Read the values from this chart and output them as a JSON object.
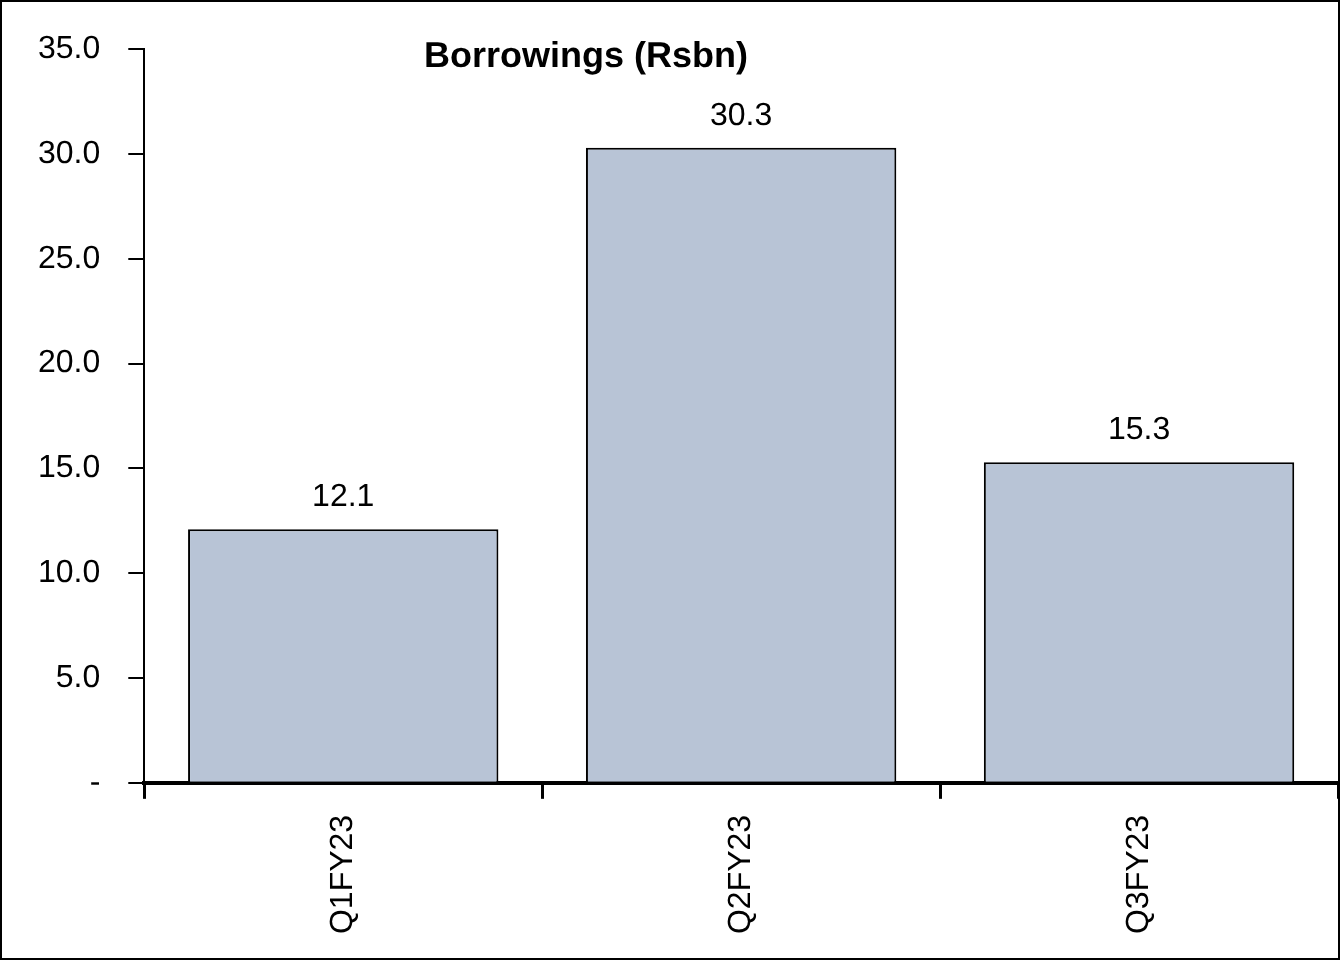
{
  "chart_data": {
    "type": "bar",
    "title": "Borrowings (Rsbn)",
    "categories": [
      "Q1FY23",
      "Q2FY23",
      "Q3FY23"
    ],
    "values": [
      12.1,
      30.3,
      15.3
    ],
    "color": "#b8c4d6",
    "ylim": [
      0,
      35
    ],
    "yticks": [
      {
        "value": 0,
        "label": "-"
      },
      {
        "value": 5,
        "label": "5.0"
      },
      {
        "value": 10,
        "label": "10.0"
      },
      {
        "value": 15,
        "label": "15.0"
      },
      {
        "value": 20,
        "label": "20.0"
      },
      {
        "value": 25,
        "label": "25.0"
      },
      {
        "value": 30,
        "label": "30.0"
      },
      {
        "value": 35,
        "label": "35.0"
      }
    ],
    "data_labels": true,
    "grid": false,
    "legend": false
  }
}
